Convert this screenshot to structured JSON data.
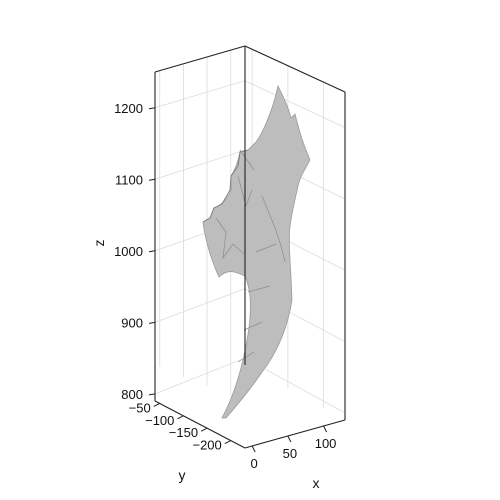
{
  "chart_data": {
    "type": "3d-surface",
    "title": "",
    "axes": {
      "x": {
        "label": "x",
        "ticks": [
          "0",
          "50",
          "100"
        ],
        "tick_values": [
          0,
          50,
          100
        ],
        "range": [
          -10,
          130
        ]
      },
      "y": {
        "label": "y",
        "ticks": [
          "−50",
          "−100",
          "−150",
          "−200"
        ],
        "tick_values": [
          -50,
          -100,
          -150,
          -200
        ],
        "range": [
          -40,
          -230
        ]
      },
      "z": {
        "label": "z",
        "ticks": [
          "800",
          "900",
          "1000",
          "1100",
          "1200"
        ],
        "tick_values": [
          800,
          900,
          1000,
          1100,
          1200
        ],
        "range": [
          790,
          1250
        ]
      }
    },
    "grid": true,
    "surface_color": "#bdbdbd"
  }
}
